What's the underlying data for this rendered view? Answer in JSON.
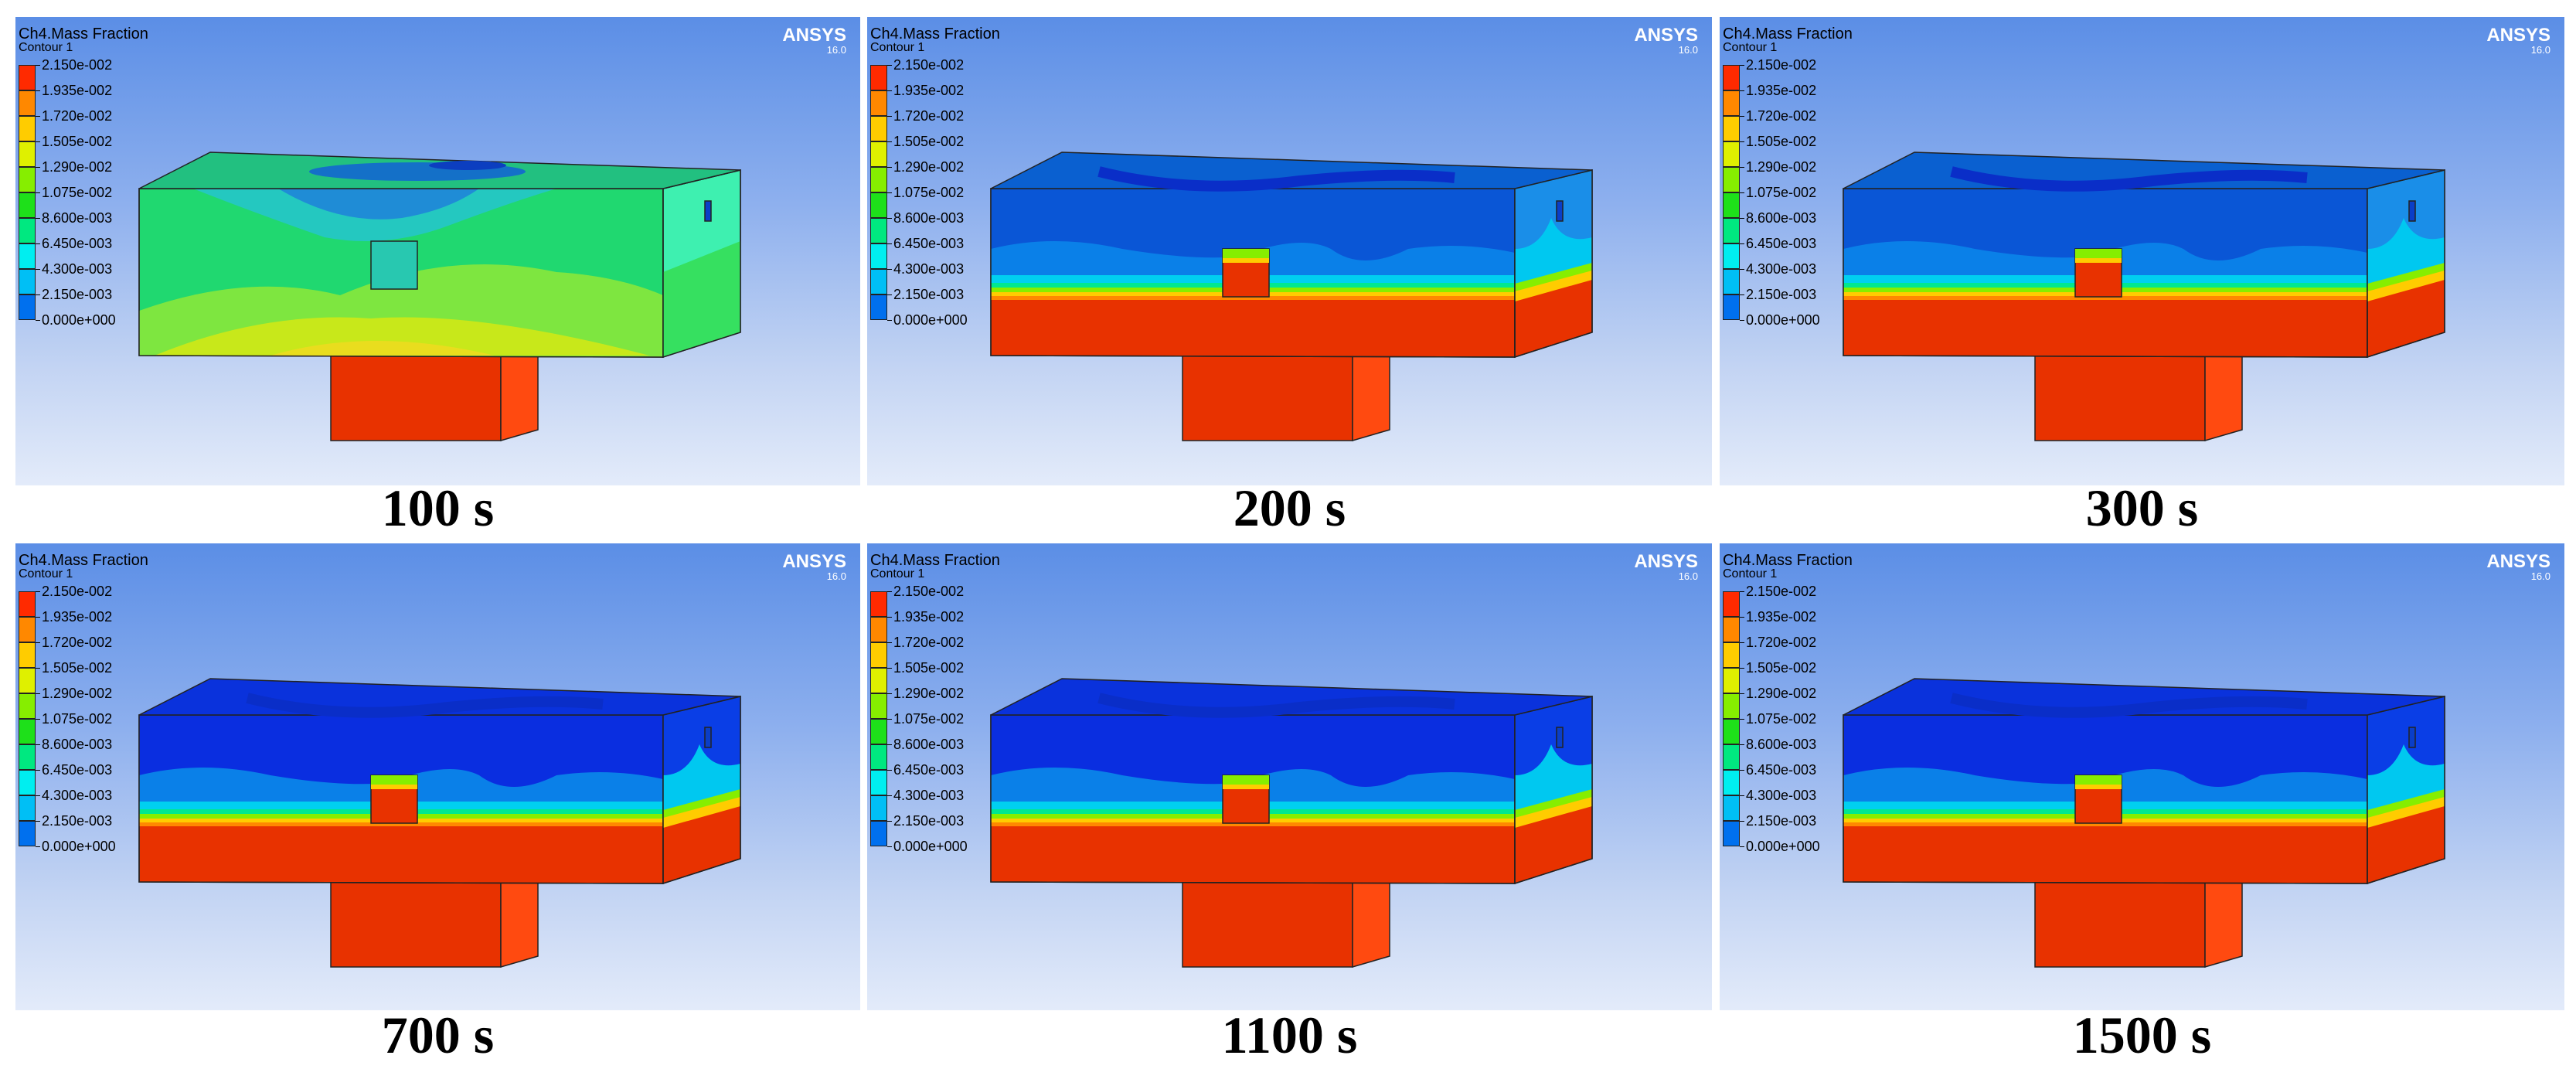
{
  "legend_title": "Ch4.Mass Fraction",
  "legend_subtitle": "Contour 1",
  "brand": "ANSYS",
  "brand_version": "16.0",
  "legend_values": [
    "2.150e-002",
    "1.935e-002",
    "1.720e-002",
    "1.505e-002",
    "1.290e-002",
    "1.075e-002",
    "8.600e-003",
    "6.450e-003",
    "4.300e-003",
    "2.150e-003",
    "0.000e+000"
  ],
  "legend_colors": [
    "#ff2a00",
    "#ff8800",
    "#ffcc00",
    "#dff000",
    "#86ee00",
    "#1ee01a",
    "#00e880",
    "#00eef0",
    "#00bff5",
    "#0070ee",
    "#0020e0"
  ],
  "panels": [
    {
      "caption": "100 s",
      "state": "early"
    },
    {
      "caption": "200 s",
      "state": "mid"
    },
    {
      "caption": "300 s",
      "state": "mid"
    },
    {
      "caption": "700 s",
      "state": "late"
    },
    {
      "caption": "1100 s",
      "state": "late"
    },
    {
      "caption": "1500 s",
      "state": "late"
    }
  ]
}
